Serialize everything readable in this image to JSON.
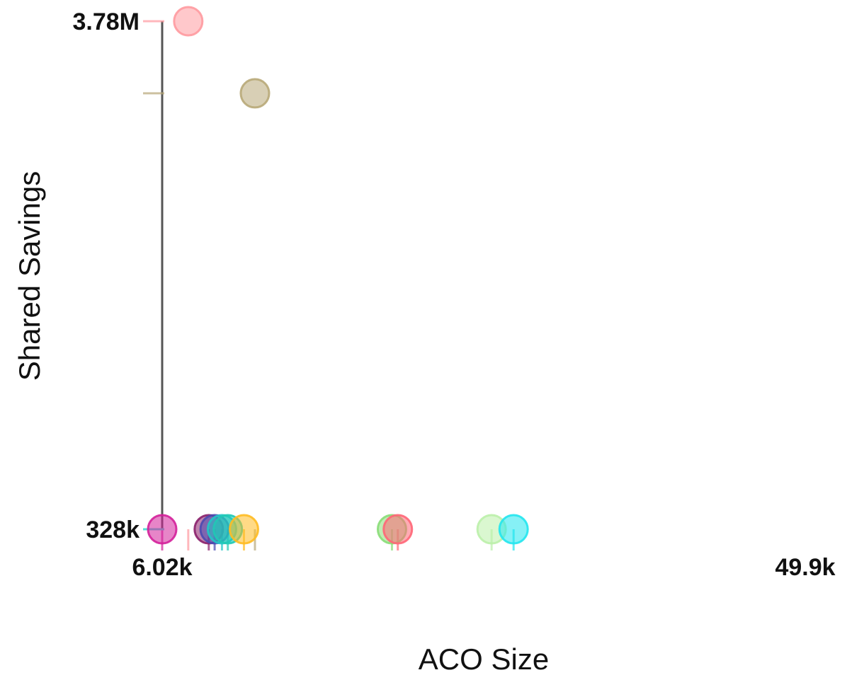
{
  "chart_data": {
    "type": "scatter",
    "title": "",
    "xlabel": "ACO Size",
    "ylabel": "Shared Savings",
    "x_ticks": [
      "6.02k",
      "49.9k"
    ],
    "y_ticks": [
      "3.78M",
      "328k"
    ],
    "xlim": [
      6020,
      49900
    ],
    "ylim": [
      328000,
      3780000
    ],
    "grid": false,
    "legend": "none",
    "points": [
      {
        "x": 6020,
        "y": 328000,
        "color": "#d4209a"
      },
      {
        "x": 7800,
        "y": 3780000,
        "color": "#ff9aa0"
      },
      {
        "x": 9200,
        "y": 328000,
        "color": "#8a1f6a"
      },
      {
        "x": 9600,
        "y": 328000,
        "color": "#4a4ab0"
      },
      {
        "x": 10100,
        "y": 328000,
        "color": "#22c7c7"
      },
      {
        "x": 10500,
        "y": 328000,
        "color": "#20c9b5"
      },
      {
        "x": 11600,
        "y": 328000,
        "color": "#ffbb22"
      },
      {
        "x": 12350,
        "y": 3290000,
        "color": "#b8a878"
      },
      {
        "x": 21700,
        "y": 328000,
        "color": "#88dd77"
      },
      {
        "x": 22100,
        "y": 328000,
        "color": "#ff6677"
      },
      {
        "x": 28500,
        "y": 328000,
        "color": "#bbf0aa"
      },
      {
        "x": 30000,
        "y": 328000,
        "color": "#22e5ee"
      }
    ]
  }
}
